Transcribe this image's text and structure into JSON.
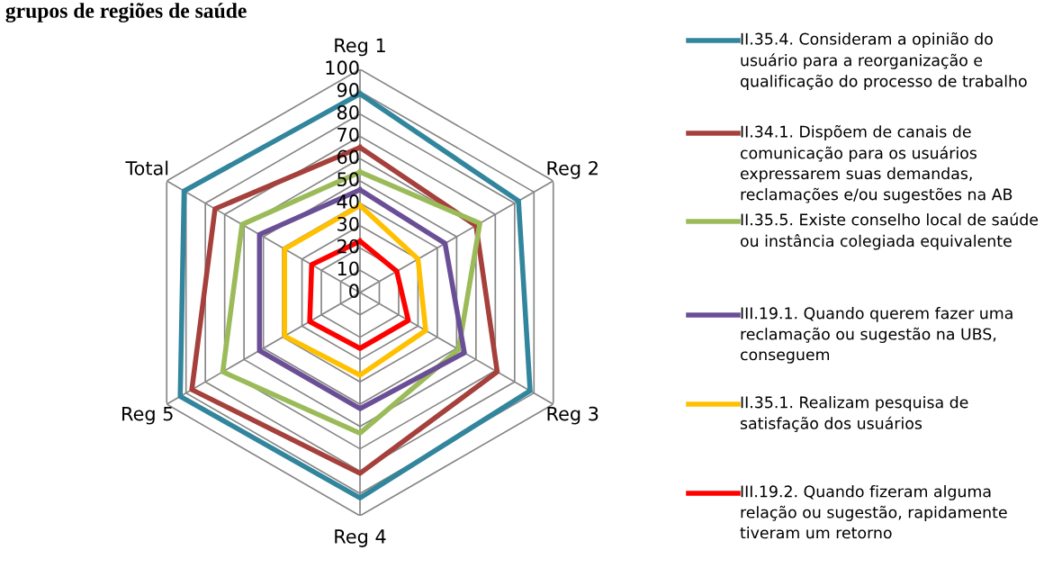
{
  "chart_data": {
    "type": "radar",
    "title": "grupos de regiões de saúde",
    "categories": [
      "Reg 1",
      "Reg 2",
      "Reg 3",
      "Reg 4",
      "Reg 5",
      "Total"
    ],
    "ylim": [
      0,
      100
    ],
    "yticks": [
      0,
      10,
      20,
      30,
      40,
      50,
      60,
      70,
      80,
      90,
      100
    ],
    "grid": true,
    "legend": "right",
    "series": [
      {
        "name": "II.35.4. Consideram a opinião do usuário para a reorganização e qualificação do processo de trabalho",
        "color": "#31859c",
        "values": [
          89,
          82,
          88,
          92,
          93,
          91
        ]
      },
      {
        "name": "II.34.1. Dispõem de canais de comunicação para os usuários expressarem suas demandas, reclamações e/ou sugestões na AB",
        "color": "#a5403c",
        "values": [
          65,
          60,
          71,
          81,
          87,
          75
        ]
      },
      {
        "name": "II.35.5. Existe conselho local de saúde ou instância colegiada equivalente",
        "color": "#9bbb59",
        "values": [
          54,
          62,
          51,
          63,
          71,
          61
        ]
      },
      {
        "name": "III.19.1. Quando querem fazer uma reclamação ou sugestão na UBS, conseguem",
        "color": "#6b4f96",
        "values": [
          46,
          44,
          54,
          52,
          52,
          52
        ]
      },
      {
        "name": "II.35.1. Realizam pesquisa de satisfação dos usuários",
        "color": "#ffc000",
        "values": [
          39,
          30,
          34,
          37,
          39,
          39
        ]
      },
      {
        "name": "III.19.2. Quando fizeram alguma relação ou sugestão, rapidamente tiveram um retorno",
        "color": "#ff0000",
        "values": [
          23,
          19,
          25,
          25,
          26,
          25
        ]
      }
    ]
  }
}
